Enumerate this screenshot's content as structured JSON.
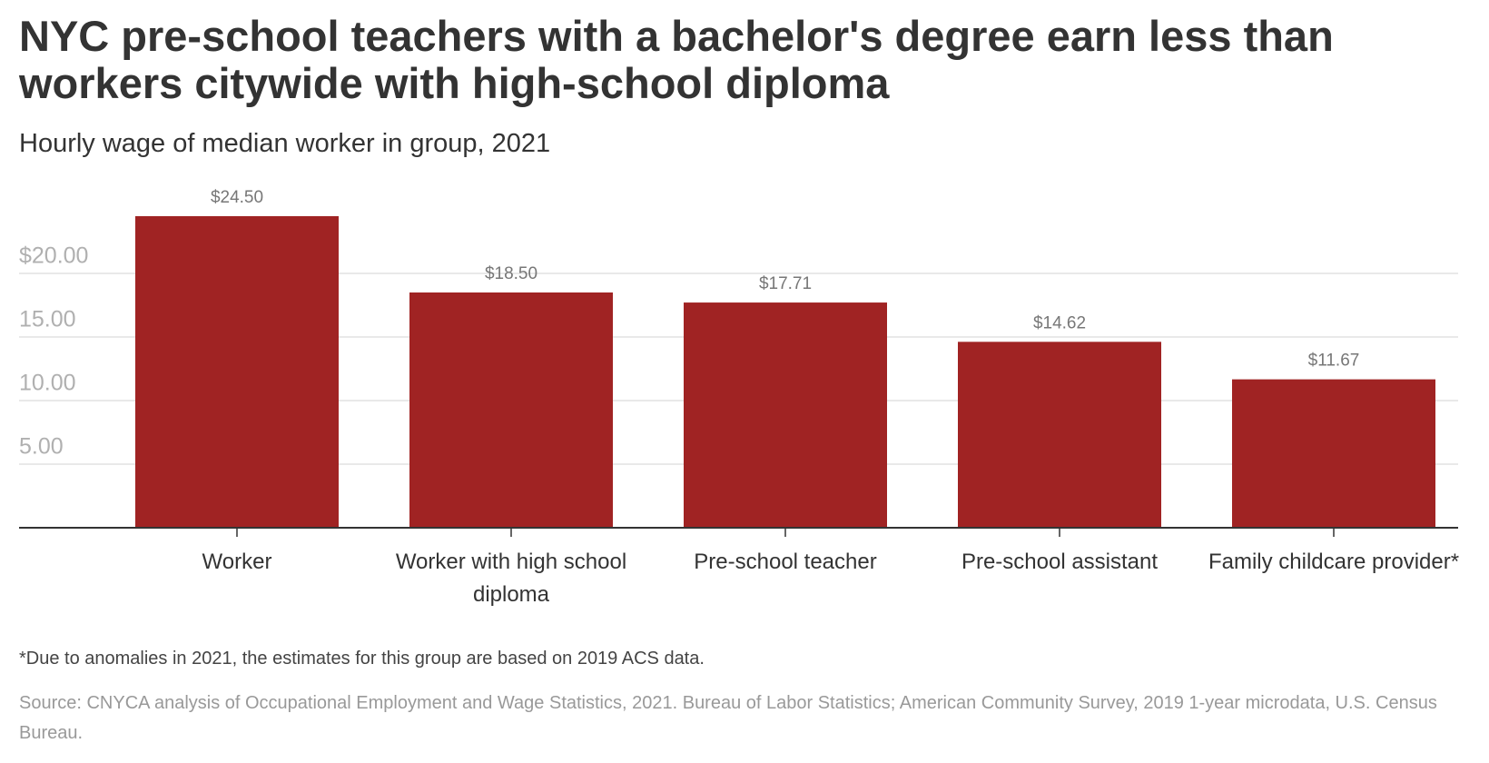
{
  "chart_data": {
    "type": "bar",
    "title": "NYC pre-school teachers with a bachelor's degree earn less than workers citywide with high-school diploma",
    "subtitle": "Hourly wage of median worker in group, 2021",
    "categories": [
      "Worker",
      "Worker with high school diploma",
      "Pre-school teacher",
      "Pre-school assistant",
      "Family childcare provider*"
    ],
    "values": [
      24.5,
      18.5,
      17.71,
      14.62,
      11.67
    ],
    "value_labels": [
      "$24.50",
      "$18.50",
      "$17.71",
      "$14.62",
      "$11.67"
    ],
    "color": "#a02323",
    "ylim": [
      0,
      26
    ],
    "yticks": [
      {
        "value": 5,
        "label": "5.00"
      },
      {
        "value": 10,
        "label": "10.00"
      },
      {
        "value": 15,
        "label": "15.00"
      },
      {
        "value": 20,
        "label": "$20.00"
      }
    ],
    "grid": true,
    "notes": [
      "*Due to anomalies in 2021, the estimates for this group are based on 2019 ACS data.",
      "Source: CNYCA analysis of Occupational Employment and Wage Statistics, 2021. Bureau of Labor Statistics; American Community Survey, 2019 1-year microdata, U.S. Census Bureau."
    ]
  }
}
